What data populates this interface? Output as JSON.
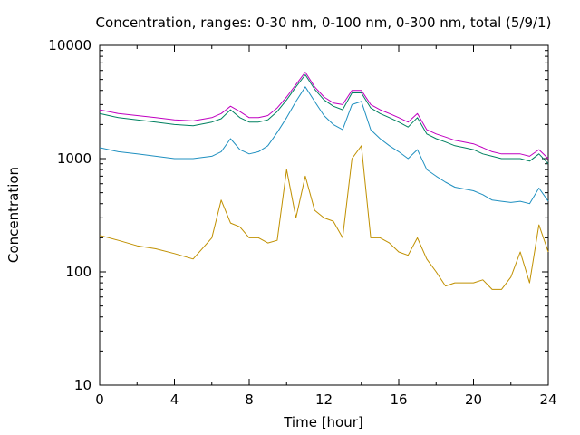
{
  "chart_data": {
    "type": "line",
    "title": "Concentration, ranges: 0-30 nm, 0-100 nm, 0-300 nm, total (5/9/1)",
    "xlabel": "Time [hour]",
    "ylabel": "Concentration",
    "xlim": [
      0,
      24
    ],
    "ylim": [
      10,
      10000
    ],
    "yscale": "log",
    "grid": false,
    "legend": "none",
    "x_ticks": [
      {
        "v": 0,
        "label": "0"
      },
      {
        "v": 4,
        "label": "4"
      },
      {
        "v": 8,
        "label": "8"
      },
      {
        "v": 12,
        "label": "12"
      },
      {
        "v": 16,
        "label": "16"
      },
      {
        "v": 20,
        "label": "20"
      },
      {
        "v": 24,
        "label": "24"
      }
    ],
    "y_ticks": [
      {
        "v": 10,
        "label": "10"
      },
      {
        "v": 100,
        "label": "100"
      },
      {
        "v": 1000,
        "label": "1000"
      },
      {
        "v": 10000,
        "label": "10000"
      }
    ],
    "x": [
      0,
      1,
      2,
      3,
      4,
      5,
      6,
      6.5,
      7,
      7.5,
      8,
      8.5,
      9,
      9.5,
      10,
      10.5,
      11,
      11.5,
      12,
      12.5,
      13,
      13.5,
      14,
      14.5,
      15,
      15.5,
      16,
      16.5,
      17,
      17.5,
      18,
      18.5,
      19,
      19.5,
      20,
      20.5,
      21,
      21.5,
      22,
      22.5,
      23,
      23.5,
      24
    ],
    "series": [
      {
        "color": "#c000c0",
        "values": [
          2700,
          2500,
          2400,
          2300,
          2200,
          2150,
          2300,
          2500,
          2900,
          2600,
          2300,
          2300,
          2400,
          2800,
          3500,
          4500,
          5800,
          4300,
          3500,
          3100,
          3000,
          4000,
          4000,
          3000,
          2700,
          2500,
          2300,
          2100,
          2500,
          1800,
          1650,
          1550,
          1450,
          1400,
          1350,
          1250,
          1150,
          1100,
          1100,
          1100,
          1050,
          1200,
          1000
        ]
      },
      {
        "color": "#008060",
        "values": [
          2500,
          2300,
          2200,
          2100,
          2000,
          1950,
          2100,
          2250,
          2700,
          2300,
          2100,
          2100,
          2200,
          2600,
          3300,
          4300,
          5500,
          4100,
          3300,
          2900,
          2700,
          3800,
          3800,
          2800,
          2500,
          2300,
          2100,
          1900,
          2300,
          1650,
          1500,
          1400,
          1300,
          1250,
          1200,
          1100,
          1050,
          1000,
          1000,
          1000,
          950,
          1100,
          900
        ]
      },
      {
        "color": "#2090c0",
        "values": [
          1250,
          1150,
          1100,
          1050,
          1000,
          1000,
          1050,
          1150,
          1500,
          1200,
          1100,
          1150,
          1300,
          1700,
          2300,
          3200,
          4300,
          3200,
          2400,
          2000,
          1800,
          3000,
          3200,
          1800,
          1500,
          1300,
          1150,
          1000,
          1200,
          800,
          700,
          620,
          560,
          540,
          520,
          480,
          430,
          420,
          410,
          420,
          400,
          550,
          420
        ]
      },
      {
        "color": "#c09000",
        "values": [
          210,
          190,
          170,
          160,
          145,
          130,
          200,
          430,
          270,
          250,
          200,
          200,
          180,
          190,
          800,
          300,
          700,
          350,
          300,
          280,
          200,
          1000,
          1300,
          200,
          200,
          180,
          150,
          140,
          200,
          130,
          100,
          75,
          80,
          80,
          80,
          85,
          70,
          70,
          90,
          150,
          80,
          260,
          150
        ]
      }
    ]
  }
}
